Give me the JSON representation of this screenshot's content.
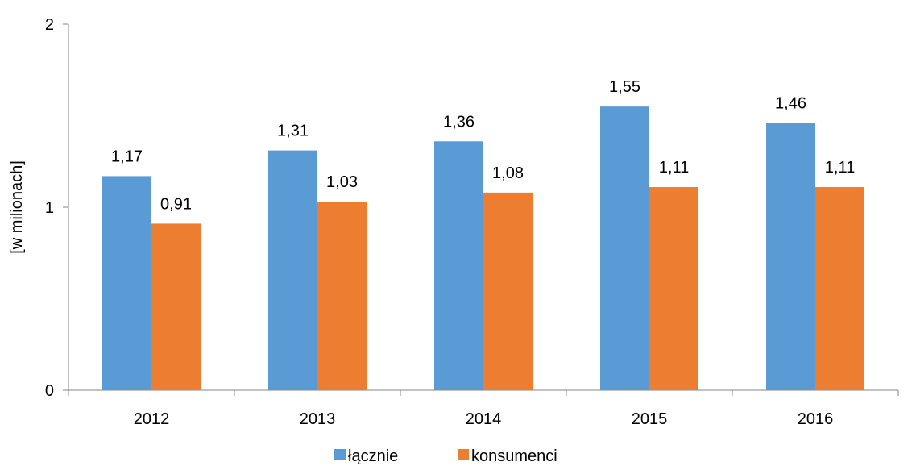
{
  "chart_data": {
    "type": "bar",
    "categories": [
      "2012",
      "2013",
      "2014",
      "2015",
      "2016"
    ],
    "series": [
      {
        "name": "łącznie",
        "values": [
          1.17,
          1.31,
          1.36,
          1.55,
          1.46
        ],
        "labels": [
          "1,17",
          "1,31",
          "1,36",
          "1,55",
          "1,46"
        ],
        "color": "#5B9BD5"
      },
      {
        "name": "konsumenci",
        "values": [
          0.91,
          1.03,
          1.08,
          1.11,
          1.11
        ],
        "labels": [
          "0,91",
          "1,03",
          "1,08",
          "1,11",
          "1,11"
        ],
        "color": "#ED7D31"
      }
    ],
    "title": "",
    "xlabel": "",
    "ylabel": "[w milionach]",
    "ylim": [
      0,
      2
    ],
    "yticks": [
      0,
      1,
      2
    ],
    "ytick_labels": [
      "0",
      "1",
      "2"
    ],
    "grid": false,
    "legend_position": "bottom"
  }
}
